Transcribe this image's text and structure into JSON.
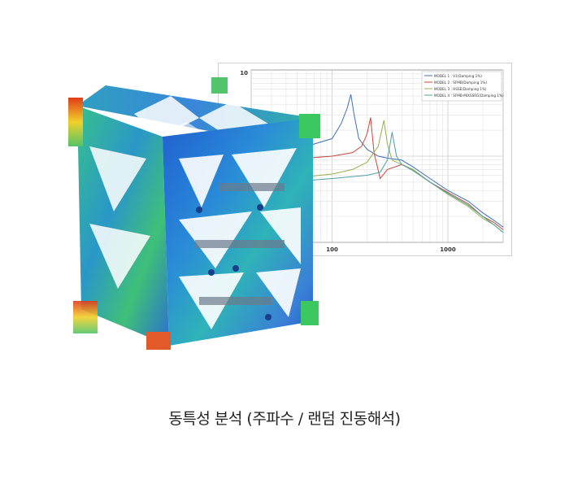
{
  "caption": "동특성 분석 (주파수 / 랜덤 진동해석)",
  "chart_data": {
    "type": "line",
    "xscale": "log",
    "yscale": "log",
    "xlim": [
      20,
      3000
    ],
    "x_tick_labels": [
      "100",
      "1000"
    ],
    "y_tick_labels": [
      "10"
    ],
    "grid": true,
    "legend_position": "top-right",
    "series": [
      {
        "name": "MODEL 1 : V1(Damping 1%)",
        "color": "#3e6fb6",
        "x": [
          20,
          60,
          100,
          120,
          135,
          145,
          155,
          170,
          200,
          250,
          300,
          400,
          500,
          700,
          1000,
          1500,
          2000,
          2500,
          3000
        ],
        "y": [
          1.2,
          1.3,
          1.6,
          2.4,
          3.6,
          5.2,
          3.0,
          1.6,
          1.2,
          1.0,
          0.95,
          0.9,
          0.75,
          0.55,
          0.4,
          0.3,
          0.22,
          0.18,
          0.15
        ]
      },
      {
        "name": "MODEL 2 : SFMB(Damping 1%)",
        "color": "#c8473a",
        "x": [
          20,
          60,
          100,
          150,
          180,
          200,
          215,
          230,
          260,
          300,
          400,
          500,
          700,
          1000,
          1500,
          2000,
          2500,
          3000
        ],
        "y": [
          0.9,
          0.95,
          1.0,
          1.1,
          1.3,
          1.8,
          2.8,
          1.1,
          0.55,
          0.7,
          0.8,
          0.7,
          0.5,
          0.38,
          0.28,
          0.2,
          0.17,
          0.14
        ]
      },
      {
        "name": "MODEL 3 : HSSE(Damping 1%)",
        "color": "#93b04a",
        "x": [
          20,
          60,
          100,
          150,
          200,
          250,
          280,
          300,
          330,
          400,
          500,
          700,
          1000,
          1500,
          2000,
          2500,
          3000
        ],
        "y": [
          0.55,
          0.58,
          0.62,
          0.7,
          0.85,
          1.3,
          2.6,
          1.4,
          0.9,
          0.8,
          0.7,
          0.5,
          0.36,
          0.26,
          0.19,
          0.16,
          0.13
        ]
      },
      {
        "name": "MODEL 4 : SFMB-MIXSSRG(Damping 1%)",
        "color": "#4aa0a8",
        "x": [
          20,
          60,
          100,
          150,
          200,
          260,
          300,
          330,
          360,
          400,
          500,
          700,
          1000,
          1500,
          2000,
          2500,
          3000
        ],
        "y": [
          0.5,
          0.52,
          0.55,
          0.58,
          0.6,
          0.65,
          0.9,
          1.9,
          1.0,
          0.8,
          0.68,
          0.5,
          0.37,
          0.27,
          0.2,
          0.16,
          0.13
        ]
      }
    ]
  }
}
